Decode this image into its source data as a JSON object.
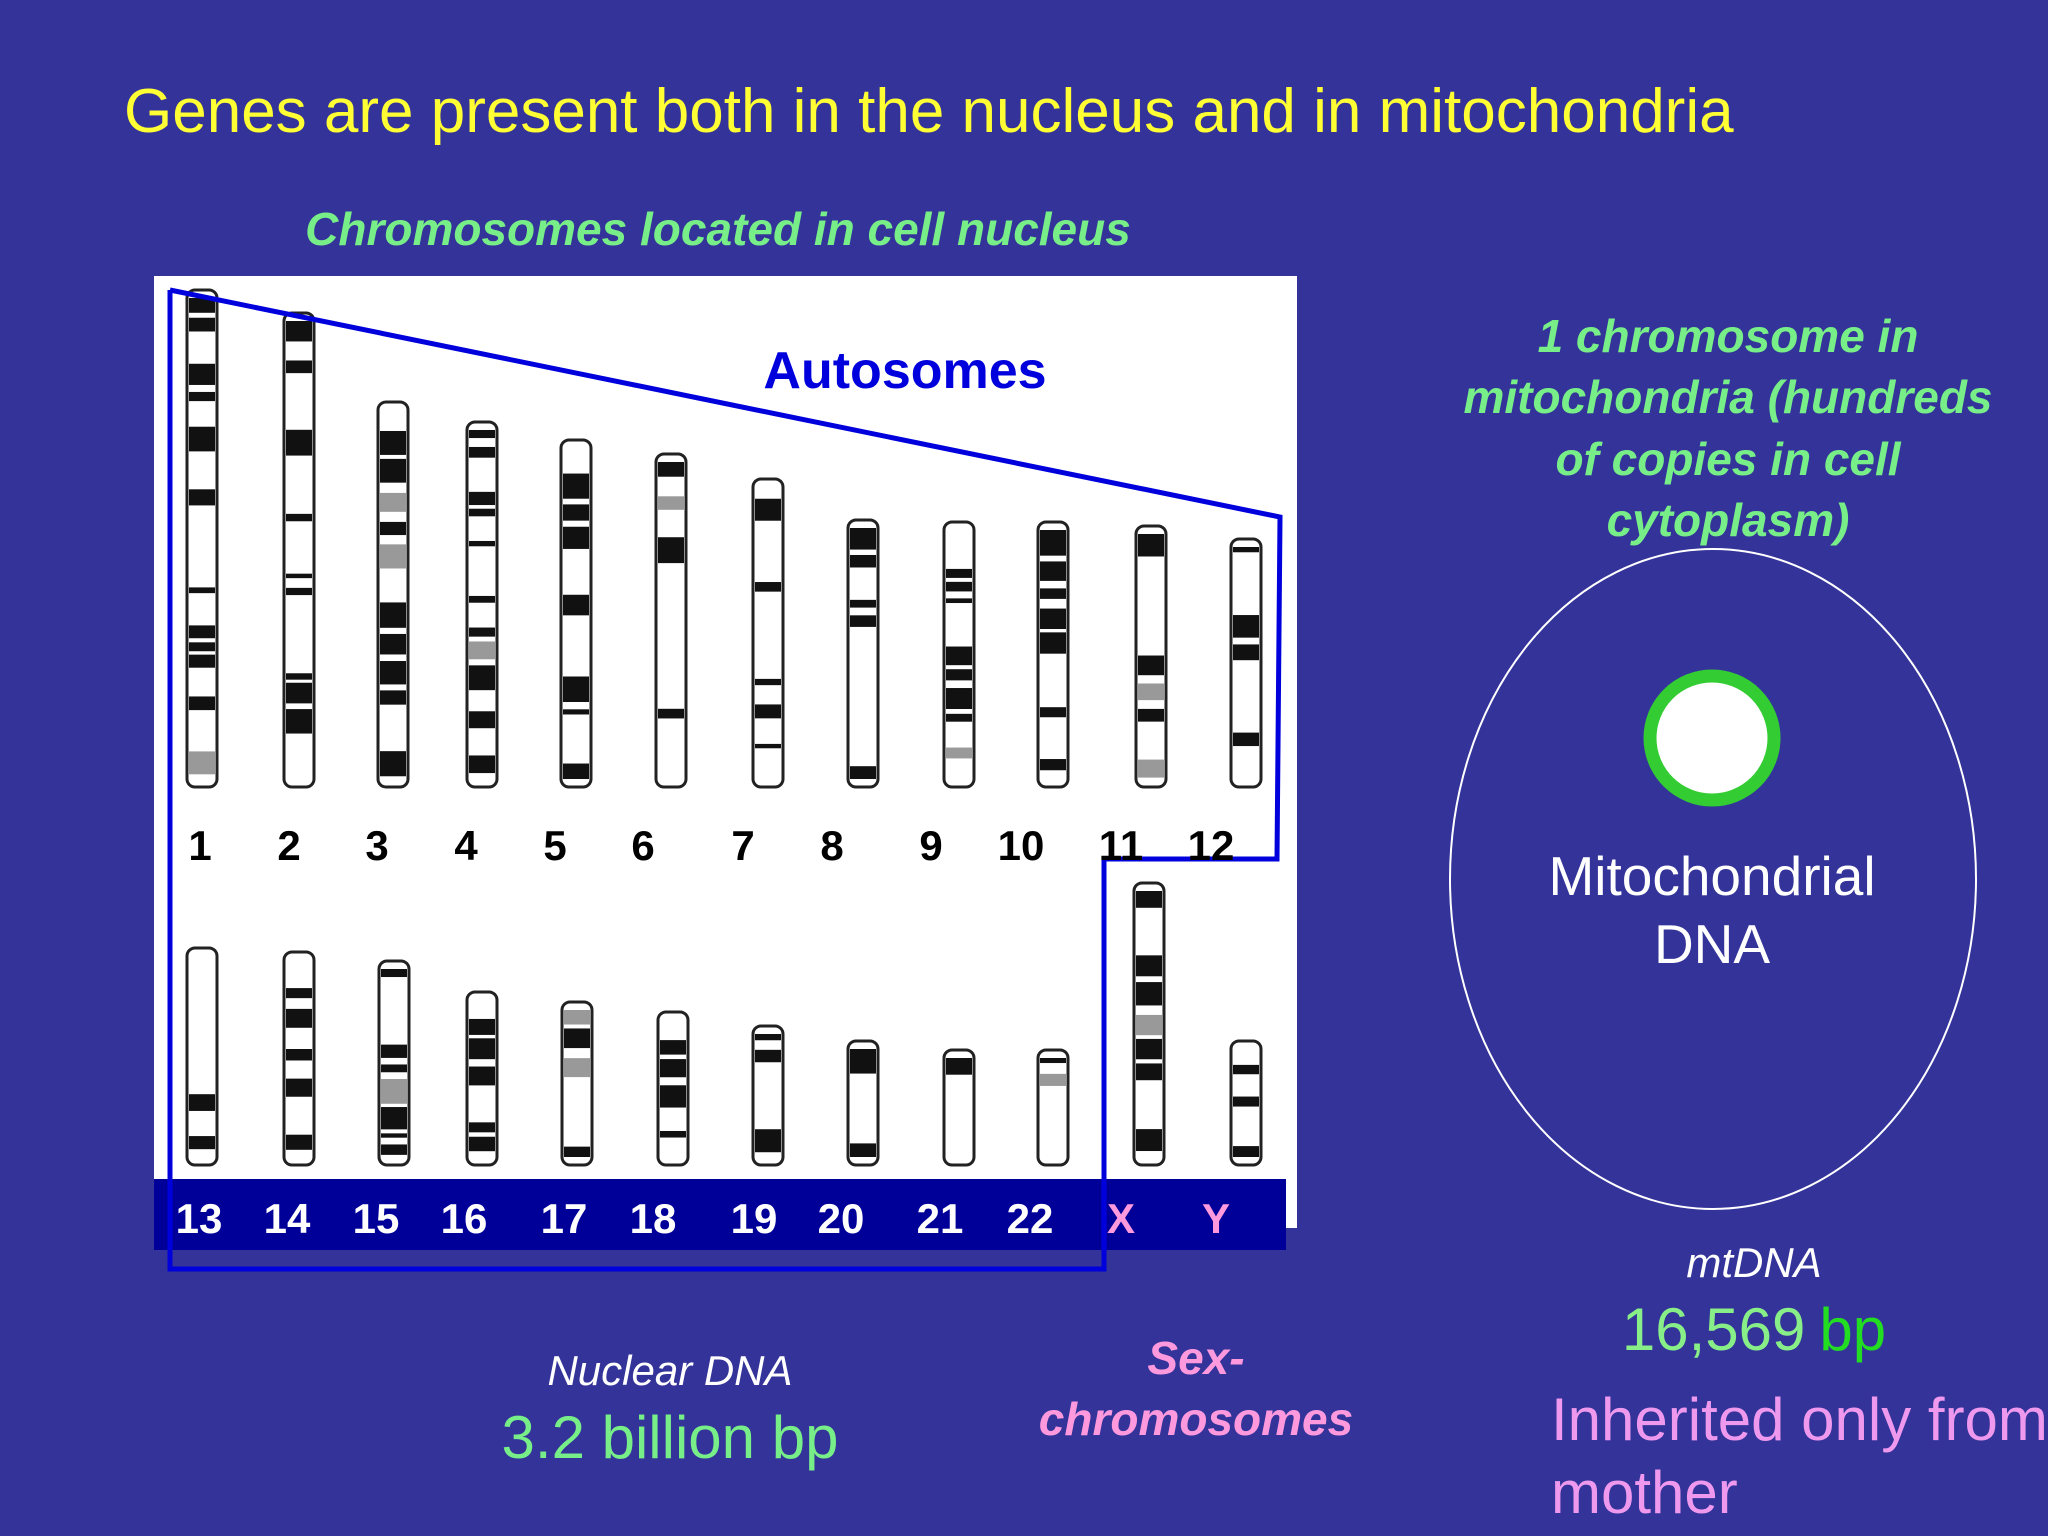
{
  "title": "Genes are present both in the nucleus and in mitochondria",
  "nucleus": {
    "heading": "Chromosomes located in cell nucleus",
    "autosomes_label": "Autosomes",
    "row1_labels": [
      "1",
      "2",
      "3",
      "4",
      "5",
      "6",
      "7",
      "8",
      "9",
      "10",
      "11",
      "12"
    ],
    "row2_labels": [
      "13",
      "14",
      "15",
      "16",
      "17",
      "18",
      "19",
      "20",
      "21",
      "22"
    ],
    "sex_labels": [
      "X",
      "Y"
    ],
    "dna_label": "Nuclear DNA",
    "dna_size": "3.2 billion bp",
    "sex_caption": [
      "Sex-",
      "chromosomes"
    ]
  },
  "mitochondria": {
    "heading": [
      "1 chromosome in",
      "mitochondria (hundreds",
      "of copies in cell",
      "cytoplasm)"
    ],
    "circle_label": [
      "Mitochondrial",
      "DNA"
    ],
    "dna_label": "mtDNA",
    "dna_size": "16,569",
    "dna_unit": "bp",
    "inheritance": [
      "Inherited only from",
      "mother"
    ]
  }
}
